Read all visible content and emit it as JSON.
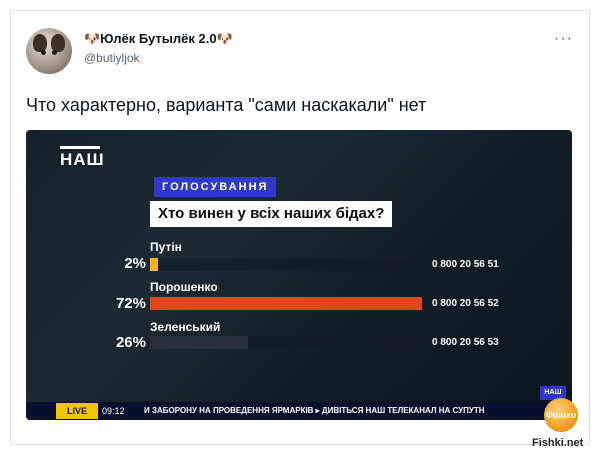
{
  "tweet": {
    "display_name": "🐶Юлёк Бутылёк 2.0🐶",
    "handle": "@butiyljok",
    "text": "Что характерно, варианта \"сами наскакали\" нет",
    "more_icon": "ellipsis-icon"
  },
  "broadcast": {
    "channel_logo": "НАШ",
    "poll_label": "ГОЛОСУВАННЯ",
    "question": "Хто винен у всіх наших бідах?",
    "candidates": [
      {
        "name": "Путін",
        "percent_label": "2%",
        "percent": 2,
        "phone": "0 800 20 56 51",
        "color": "#f2b31c"
      },
      {
        "name": "Порошенко",
        "percent_label": "72%",
        "percent": 72,
        "phone": "0 800 20 56 52",
        "color": "#e0461c"
      },
      {
        "name": "Зеленський",
        "percent_label": "26%",
        "percent": 26,
        "phone": "0 800 20 56 53",
        "color": "#2b2f3a"
      }
    ],
    "ticker": {
      "live": "LIVE",
      "time": "09:12",
      "text": "И ЗАБОРОНУ НА ПРОВЕДЕННЯ ЯРМАРКІВ  ▸  ДИВІТЬСЯ НАШ ТЕЛЕКАНАЛ НА СУПУТН"
    },
    "corner_logo": "НАШ"
  },
  "watermark": {
    "badge": "Фишки",
    "site": "Fishki.net"
  },
  "colors": {
    "poll_label_bg": "#2f39c6",
    "question_bg": "#ffffff",
    "ticker_bg": "#0b0f2e",
    "live_bg": "#f3c400"
  }
}
